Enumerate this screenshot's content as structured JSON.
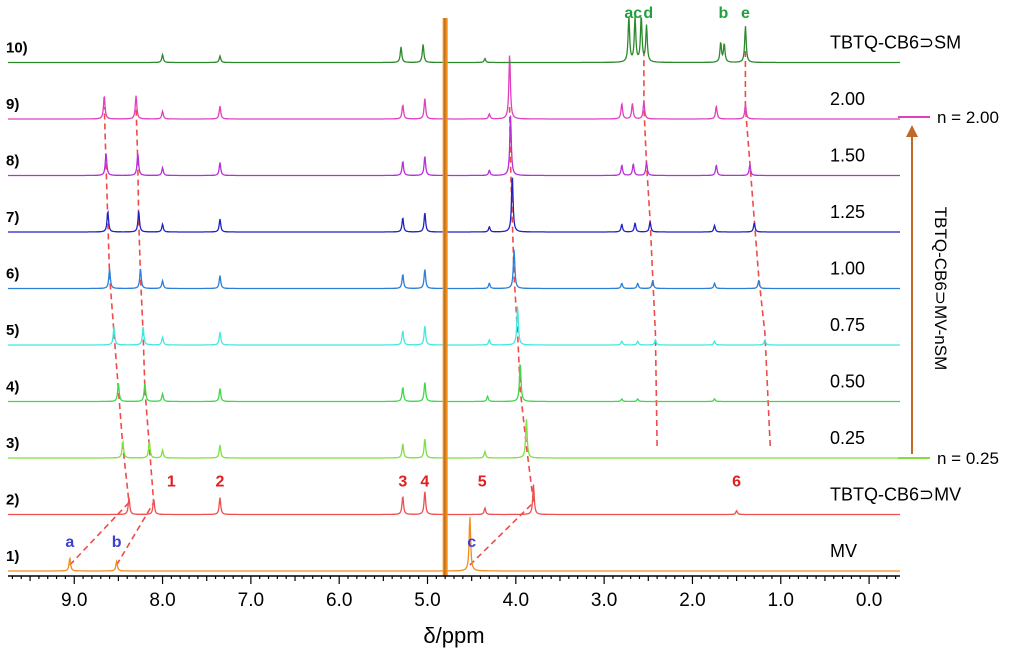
{
  "chart_data": {
    "type": "line",
    "title": "",
    "xlabel": "δ/ppm",
    "ylabel": "",
    "xlim": [
      9.75,
      -0.35
    ],
    "x_ticks": [
      "9.0",
      "8.0",
      "7.0",
      "6.0",
      "5.0",
      "4.0",
      "3.0",
      "2.0",
      "1.0",
      "0.0"
    ],
    "x_tick_values": [
      9.0,
      8.0,
      7.0,
      6.0,
      5.0,
      4.0,
      3.0,
      2.0,
      1.0,
      0.0
    ],
    "series": [
      {
        "row": "1)",
        "name": "MV",
        "color": "#F28C1E",
        "peaks": [
          [
            9.05,
            1.0
          ],
          [
            8.52,
            0.75
          ],
          [
            4.52,
            4.2
          ]
        ]
      },
      {
        "row": "2)",
        "name": "TBTQ-CB6⊃MV",
        "color": "#EF4F4F",
        "peaks": [
          [
            8.38,
            1.3
          ],
          [
            8.1,
            1.2
          ],
          [
            7.35,
            1.3
          ],
          [
            5.28,
            1.4
          ],
          [
            5.03,
            1.8
          ],
          [
            4.35,
            0.5
          ],
          [
            3.8,
            2.3
          ],
          [
            1.5,
            0.3
          ]
        ]
      },
      {
        "row": "3)",
        "name": "0.25",
        "color": "#7FE040",
        "peaks": [
          [
            8.45,
            1.3
          ],
          [
            8.15,
            1.3
          ],
          [
            8.0,
            0.6
          ],
          [
            7.35,
            1.0
          ],
          [
            5.28,
            1.1
          ],
          [
            5.03,
            1.5
          ],
          [
            4.35,
            0.5
          ],
          [
            3.88,
            3.0
          ]
        ]
      },
      {
        "row": "4)",
        "name": "0.50",
        "color": "#3FD84A",
        "peaks": [
          [
            8.5,
            1.4
          ],
          [
            8.2,
            1.4
          ],
          [
            8.0,
            0.6
          ],
          [
            7.35,
            1.0
          ],
          [
            5.28,
            1.1
          ],
          [
            5.03,
            1.5
          ],
          [
            4.32,
            0.4
          ],
          [
            3.95,
            3.0
          ],
          [
            2.8,
            0.2
          ],
          [
            2.62,
            0.2
          ],
          [
            1.75,
            0.2
          ]
        ]
      },
      {
        "row": "5)",
        "name": "0.75",
        "color": "#45E8E0",
        "peaks": [
          [
            8.55,
            1.4
          ],
          [
            8.22,
            1.4
          ],
          [
            8.0,
            0.6
          ],
          [
            7.35,
            1.0
          ],
          [
            5.28,
            1.1
          ],
          [
            5.03,
            1.5
          ],
          [
            4.3,
            0.4
          ],
          [
            3.98,
            3.0
          ],
          [
            2.8,
            0.3
          ],
          [
            2.62,
            0.3
          ],
          [
            2.42,
            0.4
          ],
          [
            1.75,
            0.3
          ],
          [
            1.18,
            0.4
          ]
        ]
      },
      {
        "row": "6)",
        "name": "1.00",
        "color": "#2B7FD8",
        "peaks": [
          [
            8.6,
            1.5
          ],
          [
            8.25,
            1.5
          ],
          [
            8.0,
            0.6
          ],
          [
            7.35,
            1.0
          ],
          [
            5.28,
            1.1
          ],
          [
            5.03,
            1.5
          ],
          [
            4.3,
            0.4
          ],
          [
            4.02,
            3.0
          ],
          [
            2.8,
            0.4
          ],
          [
            2.62,
            0.4
          ],
          [
            2.45,
            0.6
          ],
          [
            1.75,
            0.4
          ],
          [
            1.25,
            0.6
          ]
        ]
      },
      {
        "row": "7)",
        "name": "1.25",
        "color": "#2222C0",
        "peaks": [
          [
            8.62,
            1.6
          ],
          [
            8.27,
            1.6
          ],
          [
            8.0,
            0.6
          ],
          [
            7.35,
            1.0
          ],
          [
            5.28,
            1.1
          ],
          [
            5.03,
            1.5
          ],
          [
            4.3,
            0.4
          ],
          [
            4.04,
            4.4
          ],
          [
            2.8,
            0.6
          ],
          [
            2.65,
            0.7
          ],
          [
            2.48,
            0.8
          ],
          [
            1.75,
            0.5
          ],
          [
            1.3,
            0.7
          ]
        ]
      },
      {
        "row": "8)",
        "name": "1.50",
        "color": "#B530D8",
        "peaks": [
          [
            8.64,
            1.7
          ],
          [
            8.28,
            1.7
          ],
          [
            8.0,
            0.6
          ],
          [
            7.35,
            1.0
          ],
          [
            5.28,
            1.1
          ],
          [
            5.03,
            1.5
          ],
          [
            4.3,
            0.4
          ],
          [
            4.06,
            4.6
          ],
          [
            2.8,
            0.8
          ],
          [
            2.67,
            0.9
          ],
          [
            2.52,
            1.0
          ],
          [
            1.73,
            0.8
          ],
          [
            1.35,
            0.8
          ]
        ]
      },
      {
        "row": "9)",
        "name": "2.00",
        "color": "#E040C0",
        "peaks": [
          [
            8.66,
            1.8
          ],
          [
            8.3,
            1.8
          ],
          [
            8.0,
            0.6
          ],
          [
            7.35,
            1.0
          ],
          [
            5.28,
            1.1
          ],
          [
            5.03,
            1.6
          ],
          [
            4.3,
            0.4
          ],
          [
            4.07,
            5.0
          ],
          [
            2.8,
            1.2
          ],
          [
            2.68,
            1.2
          ],
          [
            2.55,
            1.3
          ],
          [
            1.73,
            1.0
          ],
          [
            1.4,
            1.1
          ]
        ]
      },
      {
        "row": "10)",
        "name": "TBTQ-CB6⊃SM",
        "color": "#2C8A2C",
        "peaks": [
          [
            8.0,
            0.6
          ],
          [
            7.35,
            0.5
          ],
          [
            5.3,
            1.2
          ],
          [
            5.05,
            1.4
          ],
          [
            4.35,
            0.3
          ],
          [
            2.72,
            3.5
          ],
          [
            2.65,
            3.4
          ],
          [
            2.58,
            3.5
          ],
          [
            2.52,
            2.8
          ],
          [
            1.68,
            1.5
          ],
          [
            1.64,
            1.4
          ],
          [
            1.4,
            2.8
          ]
        ]
      }
    ],
    "solvent_peak": 4.8,
    "peak_labels": [
      {
        "text": "a",
        "x": 9.05,
        "row": "1)",
        "color": "#4040D0"
      },
      {
        "text": "b",
        "x": 8.52,
        "row": "1)",
        "color": "#4040D0"
      },
      {
        "text": "c",
        "x": 4.5,
        "row": "1)",
        "color": "#4040D0"
      },
      {
        "text": "1",
        "x": 7.9,
        "row": "2)",
        "color": "#E02020"
      },
      {
        "text": "2",
        "x": 7.35,
        "row": "2)",
        "color": "#E02020"
      },
      {
        "text": "3",
        "x": 5.28,
        "row": "2)",
        "color": "#E02020"
      },
      {
        "text": "4",
        "x": 5.03,
        "row": "2)",
        "color": "#E02020"
      },
      {
        "text": "5",
        "x": 4.38,
        "row": "2)",
        "color": "#E02020"
      },
      {
        "text": "6",
        "x": 1.5,
        "row": "2)",
        "color": "#E02020"
      },
      {
        "text": "a",
        "x": 2.72,
        "row": "10)",
        "color": "#22A040"
      },
      {
        "text": "c",
        "x": 2.62,
        "row": "10)",
        "color": "#22A040"
      },
      {
        "text": "d",
        "x": 2.5,
        "row": "10)",
        "color": "#22A040"
      },
      {
        "text": "b",
        "x": 1.65,
        "row": "10)",
        "color": "#22A040"
      },
      {
        "text": "e",
        "x": 1.4,
        "row": "10)",
        "color": "#22A040"
      }
    ],
    "annotations": {
      "n_top": "n = 2.00",
      "n_bottom": "n = 0.25",
      "titration_label": "TBTQ-CB6⊃MV-nSM",
      "arrow_color": "#C06A2A"
    }
  }
}
